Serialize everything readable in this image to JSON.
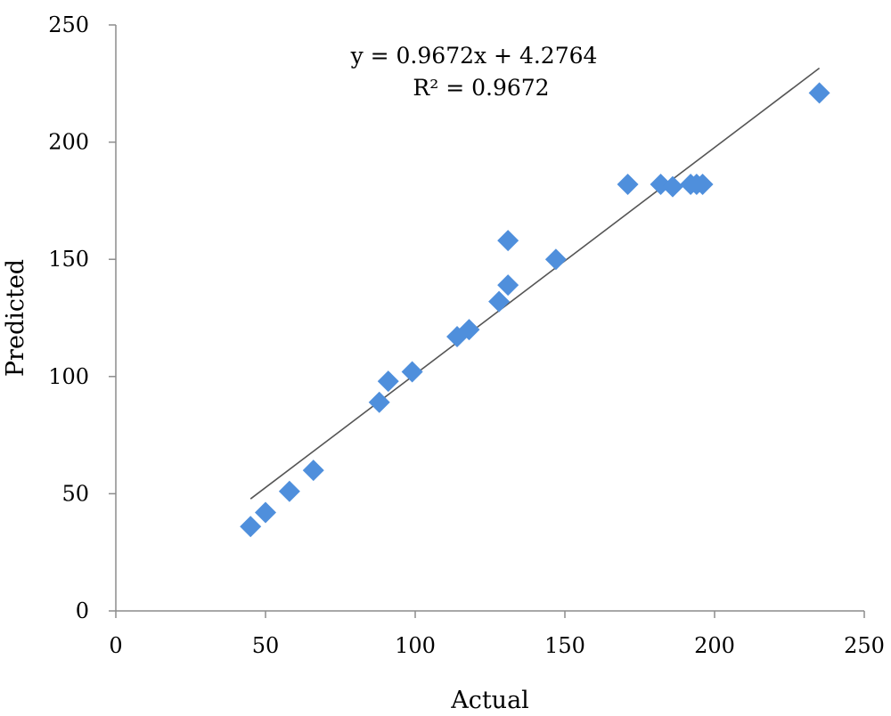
{
  "chart_data": {
    "type": "scatter",
    "title": "",
    "xlabel": "Actual",
    "ylabel": "Predicted",
    "xlim": [
      0,
      250
    ],
    "ylim": [
      0,
      250
    ],
    "xticks": [
      0,
      50,
      100,
      150,
      200,
      250
    ],
    "yticks": [
      0,
      50,
      100,
      150,
      200,
      250
    ],
    "grid": false,
    "legend": "none",
    "marker": "diamond",
    "marker_color": "#4f8fdc",
    "trendline": {
      "slope": 0.9672,
      "intercept": 4.2764,
      "x_range": [
        45,
        235
      ],
      "color": "#555555"
    },
    "annotations": [
      "y = 0.9672x + 4.2764",
      "R² = 0.9672"
    ],
    "series": [
      {
        "x": [
          45,
          50,
          58,
          66,
          88,
          91,
          99,
          114,
          118,
          128,
          131,
          131,
          147,
          171,
          182,
          186,
          192,
          194,
          196,
          235
        ],
        "y": [
          36,
          42,
          51,
          60,
          89,
          98,
          102,
          117,
          120,
          132,
          139,
          158,
          150,
          182,
          182,
          181,
          182,
          182,
          182,
          221
        ]
      }
    ]
  }
}
